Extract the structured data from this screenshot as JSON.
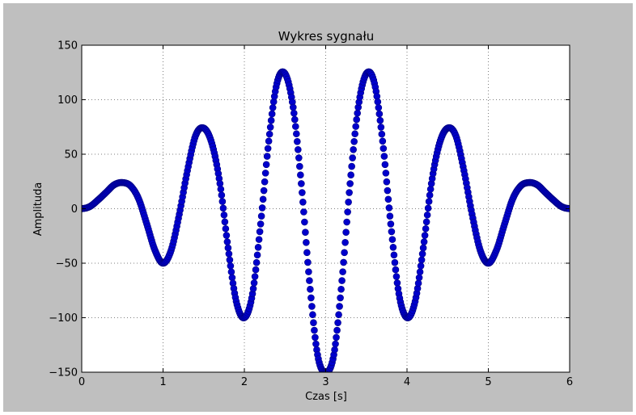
{
  "colors": {
    "outer_border": "#ffffff",
    "figure_bg": "#bfbfbf",
    "axes_bg": "#ffffff",
    "marker": "#0000cc",
    "marker_edge": "#000080",
    "grid": "#7f7f7f"
  },
  "chart_data": {
    "type": "scatter",
    "title": "Wykres sygnału",
    "xlabel": "Czas [s]",
    "ylabel": "Amplituda",
    "xlim": [
      0,
      6
    ],
    "ylim": [
      -150,
      150
    ],
    "grid": true,
    "x_ticks": [
      0,
      1,
      2,
      3,
      4,
      5,
      6
    ],
    "x_tick_labels": [
      "0",
      "1",
      "2",
      "3",
      "4",
      "5",
      "6"
    ],
    "y_ticks": [
      150,
      100,
      50,
      0,
      -50,
      -100,
      -150
    ],
    "y_tick_labels": [
      "150",
      "100",
      "50",
      "0",
      "−50",
      "−100",
      "−150"
    ],
    "series": [
      {
        "marker": "circle",
        "x": [
          0.0,
          0.1,
          0.2,
          0.3,
          0.4,
          0.5,
          0.6,
          0.7,
          0.8,
          0.9,
          1.0,
          1.1,
          1.2,
          1.3,
          1.4,
          1.5,
          1.6,
          1.7,
          1.8,
          1.9,
          2.0,
          2.1,
          2.2,
          2.3,
          2.4,
          2.5,
          2.6,
          2.7,
          2.8,
          2.9,
          3.0,
          3.1,
          3.2,
          3.3,
          3.4,
          3.5,
          3.6,
          3.7,
          3.8,
          3.9,
          4.0,
          4.1,
          4.2,
          4.3,
          4.4,
          4.5,
          4.6,
          4.7,
          4.8,
          4.9,
          5.0,
          5.1,
          5.2,
          5.3,
          5.4,
          5.5,
          5.6,
          5.7,
          5.8,
          5.9,
          6.0
        ],
        "y": [
          0,
          2,
          8,
          15,
          22,
          24,
          21,
          9,
          -14,
          -38,
          -50,
          -38,
          -5,
          35,
          67,
          74,
          60,
          23,
          -36,
          -85,
          -100,
          -78,
          -14,
          62,
          115,
          124,
          93,
          23,
          -66,
          -134,
          -150,
          -134,
          -66,
          23,
          93,
          124,
          115,
          62,
          -14,
          -78,
          -100,
          -85,
          -36,
          23,
          60,
          74,
          67,
          35,
          -5,
          -38,
          -50,
          -38,
          -14,
          9,
          21,
          24,
          22,
          15,
          8,
          2,
          0
        ]
      }
    ]
  }
}
